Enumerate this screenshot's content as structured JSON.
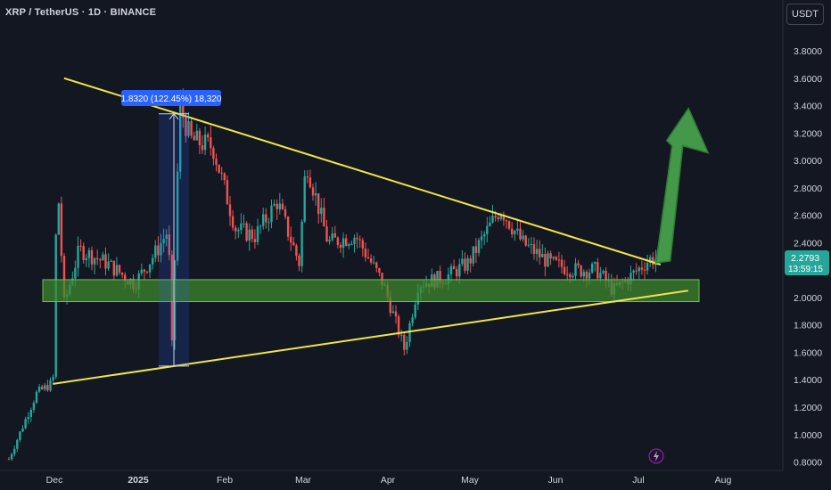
{
  "header": {
    "symbol_title": "XRP / TetherUS · 1D · BINANCE",
    "currency_button": "USDT"
  },
  "price_tag": {
    "price": "2.2793",
    "countdown": "13:59:15",
    "color": "#26a69a"
  },
  "measure_label": "1.8320 (122.45%) 18,320",
  "lightning_icon": "lightning-icon",
  "colors": {
    "background": "#131722",
    "up": "#26a69a",
    "down": "#ef5350",
    "trendline": "#f0e44a",
    "zone": "#3f8a2e",
    "arrow": "#4caf50",
    "measure": "#2962ff"
  },
  "chart_data": {
    "type": "candlestick",
    "title": "XRP / TetherUS · 1D · BINANCE",
    "y_axis": {
      "ylim": [
        0.78,
        3.95
      ],
      "ticks": [
        "3.8000",
        "3.6000",
        "3.4000",
        "3.2000",
        "3.0000",
        "2.8000",
        "2.6000",
        "2.4000",
        "2.2000",
        "2.0000",
        "1.8000",
        "1.6000",
        "1.4000",
        "1.2000",
        "1.0000",
        "0.8000"
      ]
    },
    "x_axis": {
      "ticks": [
        "Dec",
        "2025",
        "Feb",
        "Mar",
        "Apr",
        "May",
        "Jun",
        "Jul",
        "Aug"
      ],
      "bold_ticks": [
        "2025"
      ]
    },
    "grid": false,
    "key_points": [
      {
        "date": "Nov 26",
        "close": 1.38
      },
      {
        "date": "Dec 2",
        "high": 2.9
      },
      {
        "date": "Jan 13",
        "low": 1.5
      },
      {
        "date": "Jan 16",
        "high": 3.4
      },
      {
        "date": "Mar 2",
        "high": 3.0
      },
      {
        "date": "Apr 7",
        "low": 1.62
      },
      {
        "date": "May 12",
        "high": 2.65
      },
      {
        "date": "Jul 5",
        "close": 2.2793
      }
    ],
    "descending_trendline": [
      {
        "date": "Nov 30",
        "price": 3.6
      },
      {
        "date": "Jul 9",
        "price": 2.24
      }
    ],
    "ascending_trendline": [
      {
        "date": "Nov 26",
        "price": 1.37
      },
      {
        "date": "Jul 19",
        "price": 2.05
      }
    ],
    "support_zone": {
      "from": 1.97,
      "to": 2.13
    },
    "measure": {
      "low": 1.5,
      "high": 3.34,
      "change": "1.8320 (122.45%) 18,320"
    },
    "projection_arrow": {
      "from": "Jul 8",
      "to": "Jul 23",
      "price_from": 2.24,
      "price_to": 3.38
    }
  }
}
